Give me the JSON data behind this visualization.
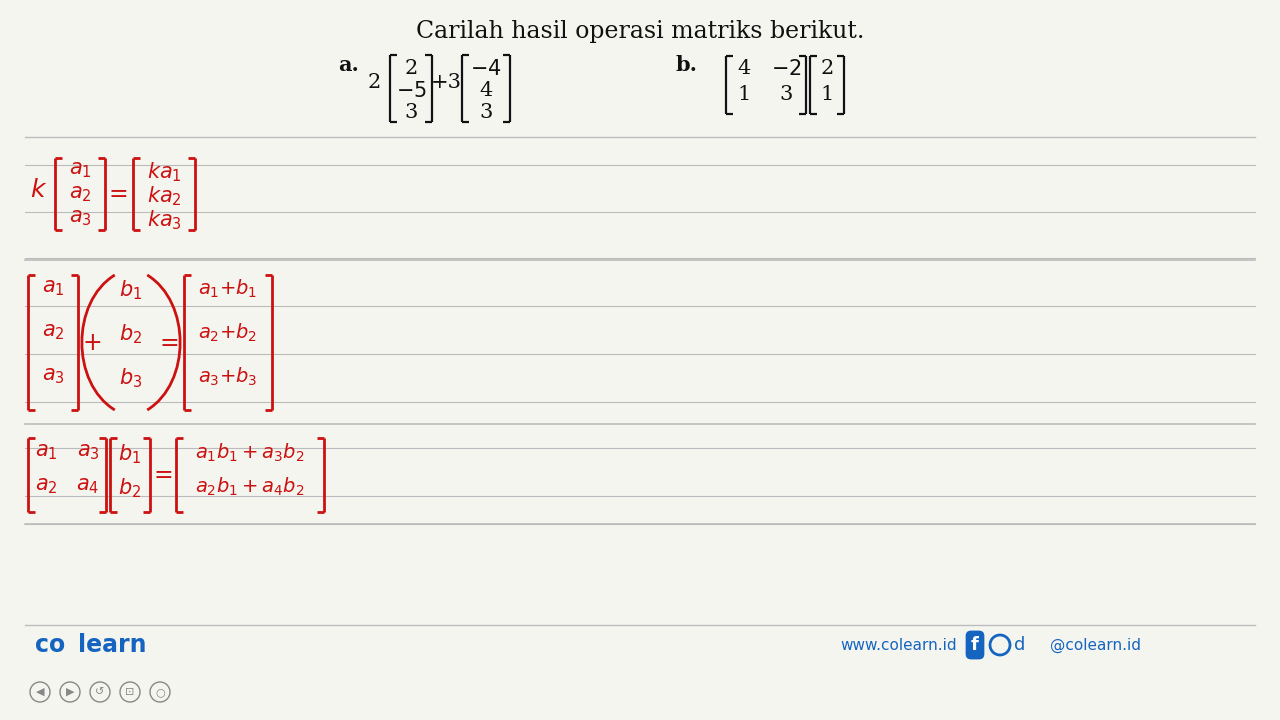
{
  "title": "Carilah hasil operasi matriks berikut.",
  "title_fontsize": 17,
  "title_color": "#1a1a1a",
  "bg_color": "#f5f5f0",
  "line_color": "#bbbbbb",
  "red_color": "#cc1111",
  "black_color": "#111111",
  "footer_color": "#1565c0",
  "footer_url": "www.colearn.id",
  "footer_handle": "@colearn.id"
}
